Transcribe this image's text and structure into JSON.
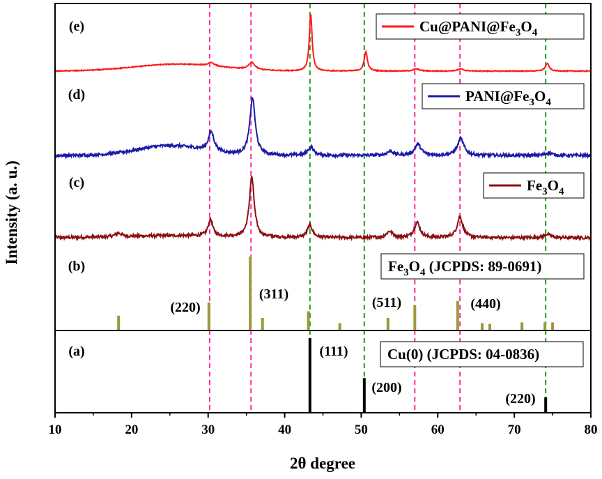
{
  "chart_data": {
    "type": "line",
    "xlabel": "2θ degree",
    "ylabel": "Intensity (a. u.)",
    "xlim": [
      10,
      80
    ],
    "x_ticks": [
      10,
      20,
      30,
      40,
      50,
      60,
      70,
      80
    ],
    "grid": false,
    "panels": [
      {
        "label": "(a)",
        "legend": {
          "main": "Cu(0) (JCPDS: 04-0836)",
          "sub": ""
        },
        "reference": "cu"
      },
      {
        "label": "(b)",
        "legend": {
          "main": "Fe3O4 (JCPDS: 89-0691)",
          "sub": ""
        },
        "reference": "fe3o4"
      },
      {
        "label": "(c)",
        "legend": {
          "main": "Fe3O4",
          "sub": ""
        },
        "series": "fe3o4"
      },
      {
        "label": "(d)",
        "legend": {
          "main": "PANI@Fe3O4",
          "sub": ""
        },
        "series": "pani"
      },
      {
        "label": "(e)",
        "legend": {
          "main": "Cu@PANI@Fe3O4",
          "sub": ""
        },
        "series": "cu_pani"
      }
    ],
    "legend_parts": {
      "cu_pani": [
        "Cu@PANI@Fe",
        "3",
        "O",
        "4"
      ],
      "pani": [
        "PANI@Fe",
        "3",
        "O",
        "4"
      ],
      "fe3o4": [
        "Fe",
        "3",
        "O",
        "4"
      ],
      "fe3o4_ref": [
        "Fe",
        "3",
        "O",
        "4",
        " (JCPDS: 89-0691)"
      ],
      "cu_ref": [
        "Cu(0) (JCPDS: 04-0836)"
      ]
    },
    "colors": {
      "cu_pani": "#ff1a1a",
      "pani": "#1a1aa8",
      "fe3o4": "#8b1010",
      "fe3o4_ref": "#9a9a3a",
      "cu_ref": "#000000",
      "magenta_guide": "#ff2d9a",
      "green_guide": "#1f9e1f"
    },
    "guide_lines": {
      "magenta": [
        30.2,
        35.6,
        57.0,
        62.9
      ],
      "green": [
        43.3,
        50.4,
        74.1
      ]
    },
    "cu_reference": [
      {
        "x": 43.3,
        "rel": 100,
        "label": "(111)"
      },
      {
        "x": 50.4,
        "rel": 46,
        "label": "(200)"
      },
      {
        "x": 74.1,
        "rel": 20,
        "label": "(220)"
      }
    ],
    "fe3o4_reference": [
      {
        "x": 18.3,
        "rel": 20,
        "label": ""
      },
      {
        "x": 30.1,
        "rel": 38,
        "label": "(220)"
      },
      {
        "x": 35.5,
        "rel": 100,
        "label": "(311)"
      },
      {
        "x": 37.1,
        "rel": 17,
        "label": ""
      },
      {
        "x": 43.1,
        "rel": 26,
        "label": ""
      },
      {
        "x": 47.2,
        "rel": 10,
        "label": ""
      },
      {
        "x": 53.5,
        "rel": 17,
        "label": ""
      },
      {
        "x": 57.0,
        "rel": 34,
        "label": "(511)"
      },
      {
        "x": 62.6,
        "rel": 40,
        "label": "(440)"
      },
      {
        "x": 65.8,
        "rel": 10,
        "label": ""
      },
      {
        "x": 66.8,
        "rel": 9,
        "label": ""
      },
      {
        "x": 71.0,
        "rel": 11,
        "label": ""
      },
      {
        "x": 74.0,
        "rel": 11,
        "label": ""
      },
      {
        "x": 75.0,
        "rel": 11,
        "label": ""
      }
    ],
    "series": {
      "fe3o4": {
        "baseline": 4,
        "humps": [
          {
            "x": 26,
            "h": 3,
            "w": 10
          }
        ],
        "noise": 2.2,
        "peaks": [
          {
            "x": 18.3,
            "h": 5,
            "w": 0.5
          },
          {
            "x": 30.3,
            "h": 24,
            "w": 0.35
          },
          {
            "x": 35.7,
            "h": 86,
            "w": 0.38
          },
          {
            "x": 43.3,
            "h": 18,
            "w": 0.4
          },
          {
            "x": 53.7,
            "h": 9,
            "w": 0.5
          },
          {
            "x": 57.3,
            "h": 22,
            "w": 0.45
          },
          {
            "x": 62.9,
            "h": 30,
            "w": 0.45
          },
          {
            "x": 74.3,
            "h": 5,
            "w": 0.5
          }
        ]
      },
      "pani": {
        "baseline": 2,
        "humps": [
          {
            "x": 25,
            "h": 14,
            "w": 6
          }
        ],
        "noise": 2.2,
        "peaks": [
          {
            "x": 30.4,
            "h": 28,
            "w": 0.45
          },
          {
            "x": 35.8,
            "h": 82,
            "w": 0.42
          },
          {
            "x": 43.4,
            "h": 12,
            "w": 0.45
          },
          {
            "x": 53.8,
            "h": 6,
            "w": 0.5
          },
          {
            "x": 57.4,
            "h": 16,
            "w": 0.5
          },
          {
            "x": 63.0,
            "h": 24,
            "w": 0.5
          },
          {
            "x": 74.5,
            "h": 4,
            "w": 0.5
          }
        ]
      },
      "cu_pani": {
        "baseline": 2,
        "humps": [
          {
            "x": 26,
            "h": 10,
            "w": 8
          }
        ],
        "noise": 0.6,
        "peaks": [
          {
            "x": 30.4,
            "h": 5,
            "w": 0.5
          },
          {
            "x": 35.7,
            "h": 10,
            "w": 0.5
          },
          {
            "x": 43.4,
            "h": 82,
            "w": 0.22
          },
          {
            "x": 50.6,
            "h": 28,
            "w": 0.25
          },
          {
            "x": 57.2,
            "h": 3,
            "w": 0.5
          },
          {
            "x": 63.0,
            "h": 3,
            "w": 0.5
          },
          {
            "x": 74.3,
            "h": 11,
            "w": 0.3
          }
        ]
      }
    }
  }
}
